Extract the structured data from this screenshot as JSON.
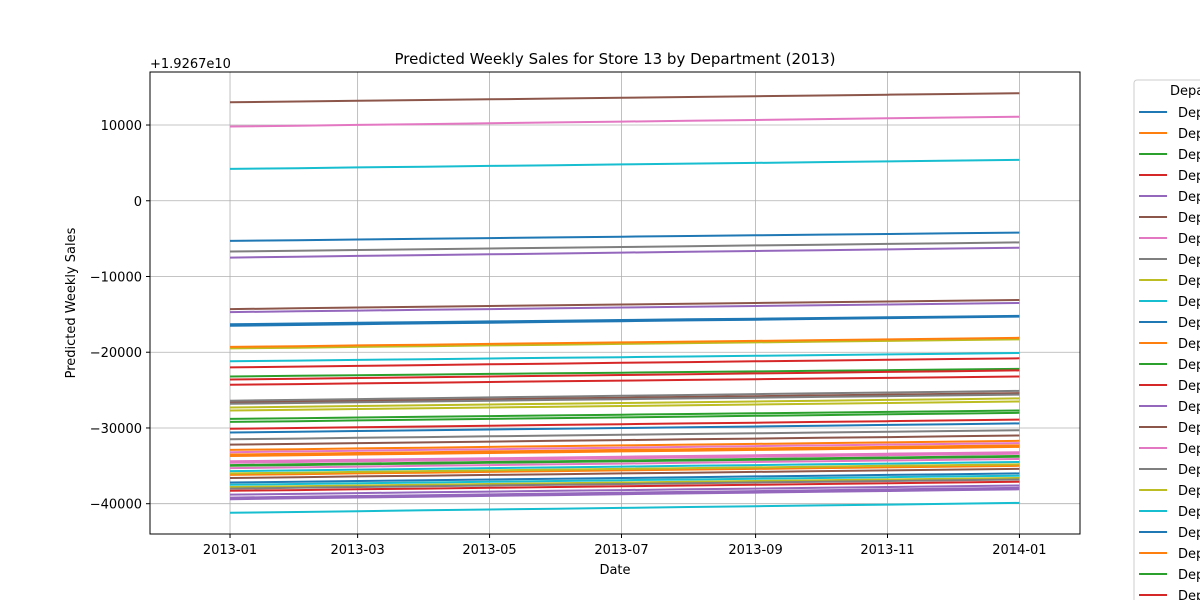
{
  "chart_data": {
    "type": "line",
    "title": "Predicted Weekly Sales for Store 13 by Department (2013)",
    "xlabel": "Date",
    "ylabel": "Predicted Weekly Sales",
    "offset_text": "+1.9267e10",
    "xlim": [
      "2012-11-25",
      "2014-01-29"
    ],
    "ylim": [
      -44000,
      17000
    ],
    "x_ticks": [
      "2013-01",
      "2013-03",
      "2013-05",
      "2013-07",
      "2013-09",
      "2013-11",
      "2014-01"
    ],
    "y_ticks": [
      -40000,
      -30000,
      -20000,
      -10000,
      0,
      10000
    ],
    "x": [
      "2013-01-01",
      "2013-02-01",
      "2013-03-01",
      "2013-04-01",
      "2013-05-01",
      "2013-06-01",
      "2013-07-01",
      "2013-08-01",
      "2013-09-01",
      "2013-10-01",
      "2013-11-01",
      "2013-12-01",
      "2014-01-01"
    ],
    "grid": true,
    "legend": {
      "title": "Depa",
      "position": "outside-right",
      "entries_label": "Dep"
    },
    "series_colors": [
      "#1f77b4",
      "#ff7f0e",
      "#2ca02c",
      "#d62728",
      "#9467bd",
      "#8c564b",
      "#e377c2",
      "#7f7f7f",
      "#bcbd22",
      "#17becf"
    ],
    "series": [
      {
        "start": -5300,
        "end": -4200
      },
      {
        "start": -36200,
        "end": -35000
      },
      {
        "start": -23200,
        "end": -22200
      },
      {
        "start": -22000,
        "end": -20800
      },
      {
        "start": -7500,
        "end": -6200
      },
      {
        "start": 13000,
        "end": 14200
      },
      {
        "start": 9800,
        "end": 11100
      },
      {
        "start": -6700,
        "end": -5500
      },
      {
        "start": -19500,
        "end": -18300
      },
      {
        "start": 4200,
        "end": 5400
      },
      {
        "start": -16500,
        "end": -15300
      },
      {
        "start": -19300,
        "end": -18100
      },
      {
        "start": -28800,
        "end": -27700
      },
      {
        "start": -24300,
        "end": -23200
      },
      {
        "start": -14700,
        "end": -13500
      },
      {
        "start": -14300,
        "end": -13100
      },
      {
        "start": -33200,
        "end": -32000
      },
      {
        "start": -31500,
        "end": -30300
      },
      {
        "start": -27700,
        "end": -26500
      },
      {
        "start": -21200,
        "end": -20100
      },
      {
        "start": -16300,
        "end": -15200
      },
      {
        "start": -33700,
        "end": -32500
      },
      {
        "start": -29200,
        "end": -28000
      },
      {
        "start": -23600,
        "end": -22400
      },
      {
        "start": -38800,
        "end": -37600
      },
      {
        "start": -26600,
        "end": -25400
      },
      {
        "start": -34400,
        "end": -33200
      },
      {
        "start": -26400,
        "end": -25100
      },
      {
        "start": -27300,
        "end": -26100
      },
      {
        "start": -35700,
        "end": -34500
      },
      {
        "start": -30600,
        "end": -29400
      },
      {
        "start": -32900,
        "end": -31700
      },
      {
        "start": -34900,
        "end": -33700
      },
      {
        "start": -30100,
        "end": -28900
      },
      {
        "start": -39400,
        "end": -38100
      },
      {
        "start": -32200,
        "end": -31000
      },
      {
        "start": -35300,
        "end": -34100
      },
      {
        "start": -26800,
        "end": -25600
      },
      {
        "start": -37800,
        "end": -36600
      },
      {
        "start": -41200,
        "end": -39900
      },
      {
        "start": -37200,
        "end": -36000
      },
      {
        "start": -33500,
        "end": -32300
      },
      {
        "start": -35000,
        "end": -33800
      },
      {
        "start": -38300,
        "end": -37100
      },
      {
        "start": -39200,
        "end": -37900
      },
      {
        "start": -36600,
        "end": -35400
      },
      {
        "start": -34600,
        "end": -33400
      },
      {
        "start": -38000,
        "end": -36800
      },
      {
        "start": -36000,
        "end": -34800
      },
      {
        "start": -37500,
        "end": -36300
      }
    ],
    "legend_visible_count": 24
  }
}
